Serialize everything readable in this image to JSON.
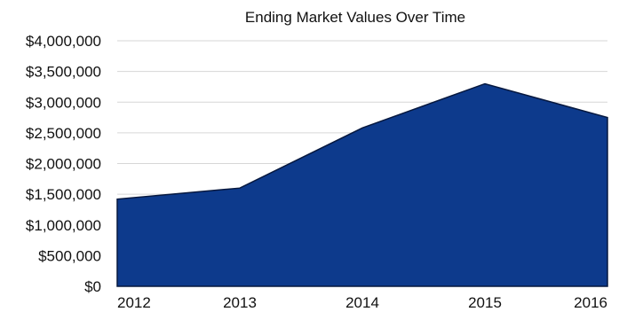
{
  "chart_data": {
    "type": "area",
    "title": "Ending Market Values Over Time",
    "xlabel": "",
    "ylabel": "",
    "categories": [
      "2012",
      "2013",
      "2014",
      "2015",
      "2016"
    ],
    "series": [
      {
        "values": [
          1420000,
          1600000,
          2580000,
          3300000,
          2750000
        ]
      }
    ],
    "ylim": [
      0,
      4000000
    ],
    "yticks": [
      0,
      500000,
      1000000,
      1500000,
      2000000,
      2500000,
      3000000,
      3500000,
      4000000
    ],
    "ytick_labels": [
      "$0",
      "$500,000",
      "$1,000,000",
      "$1,500,000",
      "$2,000,000",
      "$2,500,000",
      "$3,000,000",
      "$3,500,000",
      "$4,000,000"
    ],
    "grid": true,
    "legend": "none",
    "colors": {
      "fill": "#0d3a8c",
      "stroke": "#06183f",
      "grid": "#d6d6d6"
    }
  }
}
